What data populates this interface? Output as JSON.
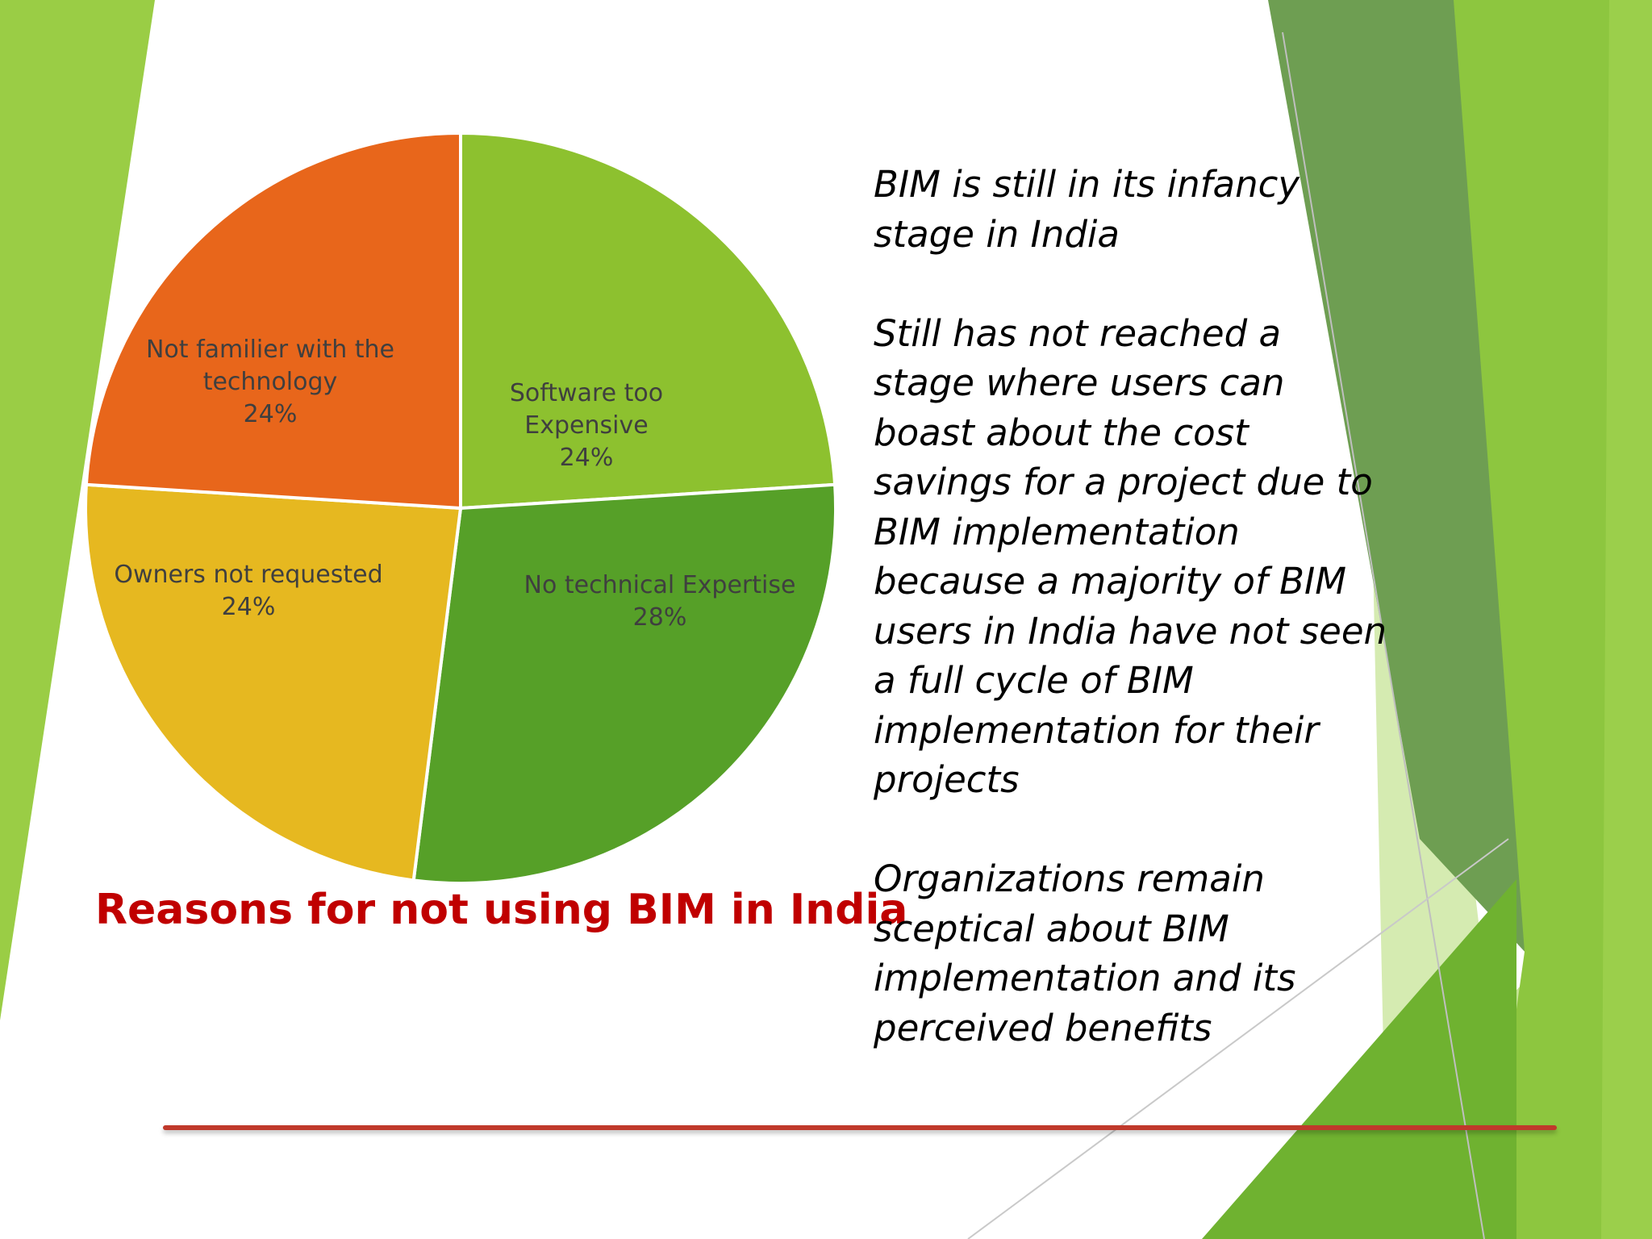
{
  "theme": {
    "accent_green": "#8dc63f",
    "dark_green": "#4e8f1f",
    "title_red": "#c00000",
    "rule_red": "#c0392b"
  },
  "chart_data": {
    "type": "pie",
    "title": "Reasons for not using BIM in India",
    "start_angle_deg": 0,
    "direction": "clockwise",
    "slices": [
      {
        "label_lines": [
          "Software too",
          "Expensive"
        ],
        "value": 24,
        "value_label": "24%",
        "color": "#8dc12f"
      },
      {
        "label_lines": [
          "No technical Expertise"
        ],
        "value": 28,
        "value_label": "28%",
        "color": "#56a028"
      },
      {
        "label_lines": [
          "Owners not requested"
        ],
        "value": 24,
        "value_label": "24%",
        "color": "#e6b820"
      },
      {
        "label_lines": [
          "Not familier with the",
          "technology"
        ],
        "value": 24,
        "value_label": "24%",
        "color": "#e8661b"
      }
    ]
  },
  "text_block": {
    "p1": "BIM is still in its infancy stage in India",
    "p2": "Still has not reached a stage where users can boast about the cost savings  for a project due to  BIM implementation because a majority of BIM users in India have  not seen a full cycle of  BIM implementation for their projects",
    "p3": "Organizations remain sceptical about BIM implementation and its perceived benefits"
  }
}
